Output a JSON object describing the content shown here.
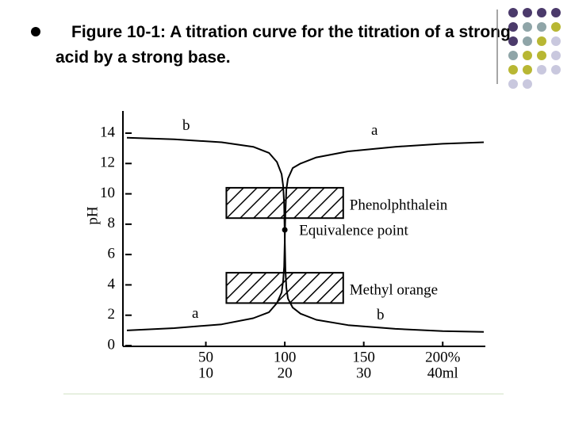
{
  "header": {
    "title": "Figure 10-1: A titration curve for the titration of a strong acid by a strong base."
  },
  "chart_data": {
    "type": "line",
    "ylabel": "pH",
    "x": [
      0,
      30,
      60,
      80,
      90,
      95,
      98,
      99,
      99.6,
      100,
      100.4,
      101,
      102,
      105,
      110,
      120,
      140,
      170,
      200,
      226
    ],
    "series": [
      {
        "name": "a",
        "color": "#000000",
        "values": [
          1.0,
          1.15,
          1.4,
          1.8,
          2.2,
          2.8,
          3.5,
          4.3,
          5.2,
          7,
          8.8,
          10.3,
          11.0,
          11.7,
          12.0,
          12.4,
          12.8,
          13.1,
          13.3,
          13.4
        ]
      },
      {
        "name": "b",
        "color": "#000000",
        "values": [
          13.7,
          13.6,
          13.4,
          13.1,
          12.7,
          12.1,
          11.3,
          10.5,
          9.3,
          7,
          5.0,
          3.8,
          3.1,
          2.5,
          2.1,
          1.7,
          1.35,
          1.1,
          0.95,
          0.9
        ]
      }
    ],
    "xlim": [
      0,
      226
    ],
    "ylim": [
      0,
      14
    ],
    "yticks": [
      0,
      2,
      4,
      6,
      8,
      10,
      12,
      14
    ],
    "xticks": [
      50,
      100,
      {
        "value": 150,
        "label": "150"
      },
      {
        "value": 200,
        "label": "200%"
      }
    ],
    "x2ticks": [
      {
        "value": 50,
        "label": "10"
      },
      {
        "value": 100,
        "label": "20"
      },
      {
        "value": 150,
        "label": "30"
      },
      {
        "value": 200,
        "label": "40ml"
      }
    ],
    "indicators": [
      {
        "label": "Phenolphthalein",
        "range": [
          8.4,
          10.4
        ],
        "x_range": [
          63,
          137
        ]
      },
      {
        "label": "Methyl orange",
        "range": [
          2.8,
          4.8
        ],
        "x_range": [
          63,
          137
        ]
      }
    ],
    "equivalence_point": {
      "label": "Equivalence point",
      "x": 100,
      "y": 7
    }
  }
}
